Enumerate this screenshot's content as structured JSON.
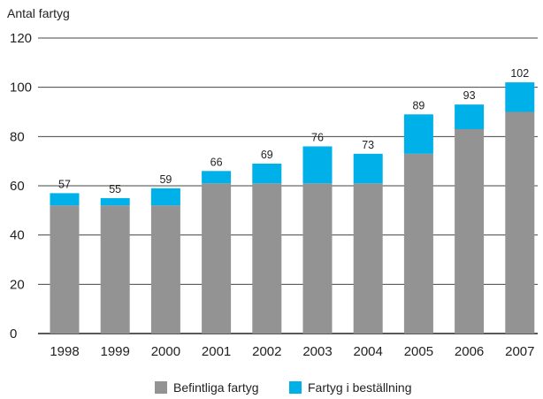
{
  "chart_data": {
    "type": "bar",
    "stacked": true,
    "ylabel": "Antal fartyg",
    "xlabel": "",
    "ylim": [
      0,
      120
    ],
    "yticks": [
      0,
      20,
      40,
      60,
      80,
      100,
      120
    ],
    "grid": true,
    "legend_position": "bottom",
    "categories": [
      "1998",
      "1999",
      "2000",
      "2001",
      "2002",
      "2003",
      "2004",
      "2005",
      "2006",
      "2007"
    ],
    "series": [
      {
        "name": "Befintliga fartyg",
        "color": "#939393",
        "values": [
          52,
          52,
          52,
          61,
          61,
          61,
          61,
          73,
          83,
          90
        ]
      },
      {
        "name": "Fartyg i beställning",
        "color": "#00b0e8",
        "values": [
          5,
          3,
          7,
          5,
          8,
          15,
          12,
          16,
          10,
          12
        ]
      }
    ],
    "totals": [
      57,
      55,
      59,
      66,
      69,
      76,
      73,
      89,
      93,
      102
    ]
  }
}
